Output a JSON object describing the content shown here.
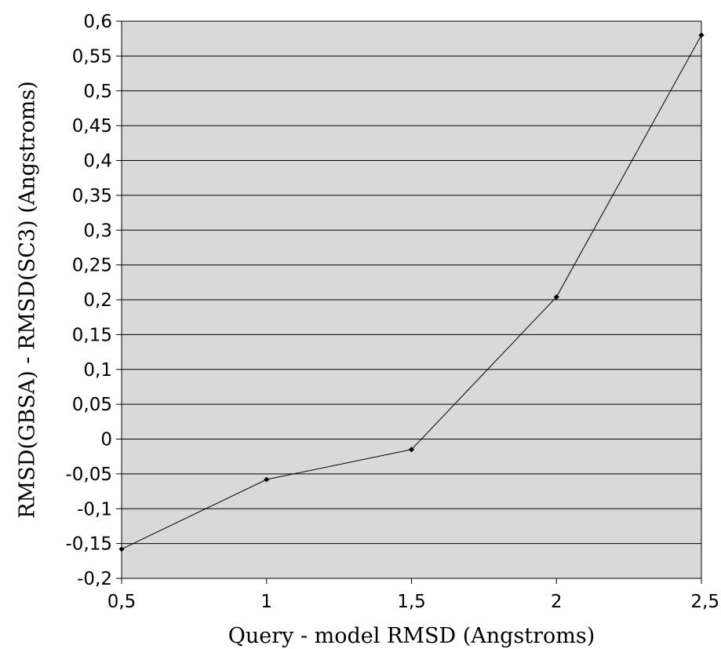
{
  "chart_data": {
    "type": "line",
    "title": "",
    "xlabel": "Query - model RMSD (Angstroms)",
    "ylabel": "RMSD(GBSA) - RMSD(SC3) (Angstroms)",
    "x": [
      0.5,
      1,
      1.5,
      2,
      2.5
    ],
    "series": [
      {
        "values": [
          -0.158,
          -0.058,
          -0.015,
          0.204,
          0.58
        ]
      }
    ],
    "xlim": [
      0.5,
      2.5
    ],
    "ylim": [
      -0.2,
      0.6
    ],
    "xticks": [
      0.5,
      1,
      1.5,
      2,
      2.5
    ],
    "xtick_labels": [
      "0,5",
      "1",
      "1,5",
      "2",
      "2,5"
    ],
    "yticks": [
      0.6,
      0.55,
      0.5,
      0.45,
      0.4,
      0.35,
      0.3,
      0.25,
      0.2,
      0.15,
      0.1,
      0.05,
      0,
      -0.05,
      -0.1,
      -0.15,
      -0.2
    ],
    "ytick_labels": [
      "0,6",
      "0,55",
      "0,5",
      "0,45",
      "0,4",
      "0,35",
      "0,3",
      "0,25",
      "0,2",
      "0,15",
      "0,1",
      "0,05",
      "0",
      "-0,05",
      "-0,1",
      "-0,15",
      "-0,2"
    ],
    "grid": "horizontal",
    "legend": "none",
    "colors": {
      "plot_background": "#d9d9d9",
      "line": "#000000",
      "grid": "#000000",
      "axis": "#000000"
    }
  }
}
